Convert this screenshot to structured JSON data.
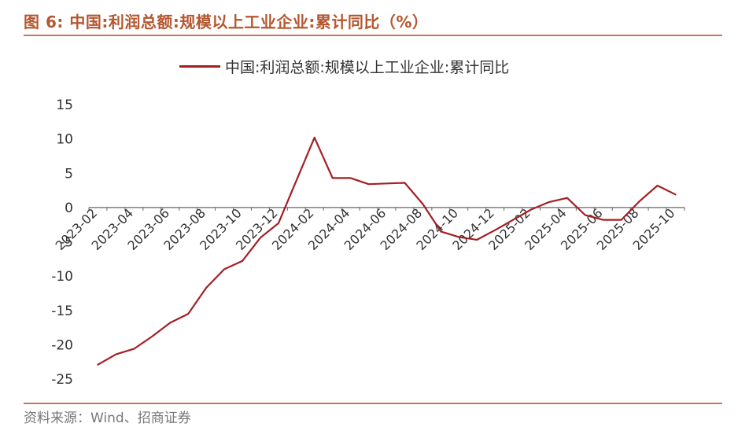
{
  "figure": {
    "title": "图 6:  中国:利润总额:规模以上工业企业:累计同比（%）",
    "source": "资料来源：Wind、招商证券"
  },
  "colors": {
    "line": "#a31f24",
    "accent": "#c8775b",
    "axis": "#666666"
  },
  "chart_data": {
    "type": "line",
    "title": "",
    "xlabel": "",
    "ylabel": "",
    "ylim": [
      -25,
      15
    ],
    "yticks": [
      15,
      10,
      5,
      0,
      -5,
      -10,
      -15,
      -20,
      -25
    ],
    "grid": false,
    "legend_position": "top",
    "x_tick_labels": [
      "2023-02",
      "2023-04",
      "2023-06",
      "2023-08",
      "2023-10",
      "2023-12",
      "2024-02",
      "2024-04",
      "2024-06",
      "2024-08",
      "2024-10",
      "2024-12",
      "2025-02",
      "2025-04",
      "2025-06",
      "2025-08",
      "2025-10"
    ],
    "x": [
      "2023-02",
      "2023-03",
      "2023-04",
      "2023-05",
      "2023-06",
      "2023-07",
      "2023-08",
      "2023-09",
      "2023-10",
      "2023-11",
      "2023-12",
      "2024-01",
      "2024-02",
      "2024-03",
      "2024-04",
      "2024-05",
      "2024-06",
      "2024-07",
      "2024-08",
      "2024-09",
      "2024-10",
      "2024-11",
      "2024-12",
      "2025-01",
      "2025-02",
      "2025-03",
      "2025-04",
      "2025-05",
      "2025-06",
      "2025-07",
      "2025-08",
      "2025-09",
      "2025-10"
    ],
    "series": [
      {
        "name": "中国:利润总额:规模以上工业企业:累计同比",
        "values": [
          -22.9,
          -21.4,
          -20.6,
          -18.8,
          -16.8,
          -15.5,
          -11.7,
          -9.0,
          -7.8,
          -4.4,
          -2.3,
          null,
          10.2,
          4.3,
          4.3,
          3.4,
          3.5,
          3.6,
          0.5,
          -3.5,
          -4.3,
          -4.7,
          -3.3,
          null,
          -0.3,
          0.8,
          1.4,
          -1.1,
          -1.8,
          -1.8,
          0.9,
          3.2,
          1.9
        ]
      }
    ]
  }
}
